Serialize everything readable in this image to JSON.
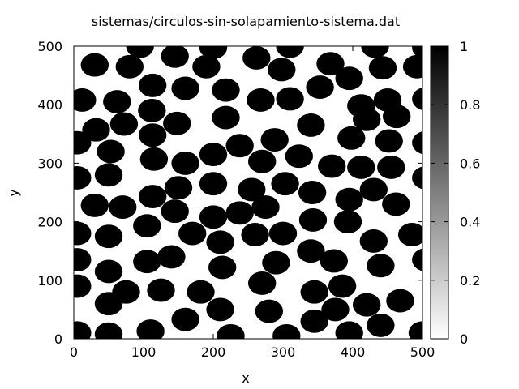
{
  "chart_data": {
    "type": "heatmap",
    "title": "sistemas/circulos-sin-solapamiento-sistema.dat",
    "xlabel": "x",
    "ylabel": "y",
    "xlim": [
      0,
      500
    ],
    "ylim": [
      0,
      500
    ],
    "x_ticks": [
      "0",
      "100",
      "200",
      "300",
      "400",
      "500"
    ],
    "y_ticks": [
      "0",
      "100",
      "200",
      "300",
      "400",
      "500"
    ],
    "colorbar": {
      "range": [
        0,
        1
      ],
      "ticks": [
        "0",
        "0.2",
        "0.4",
        "0.6",
        "0.8",
        "1"
      ],
      "colormap": "white-to-black"
    },
    "circle_radius": 20,
    "circle_value": 1,
    "circles": [
      [
        95,
        500
      ],
      [
        200,
        498
      ],
      [
        310,
        500
      ],
      [
        432,
        500
      ],
      [
        505,
        498
      ],
      [
        30,
        468
      ],
      [
        80,
        465
      ],
      [
        145,
        483
      ],
      [
        190,
        465
      ],
      [
        262,
        480
      ],
      [
        298,
        460
      ],
      [
        368,
        470
      ],
      [
        395,
        445
      ],
      [
        443,
        463
      ],
      [
        492,
        465
      ],
      [
        12,
        408
      ],
      [
        62,
        405
      ],
      [
        113,
        433
      ],
      [
        160,
        428
      ],
      [
        218,
        425
      ],
      [
        268,
        408
      ],
      [
        310,
        410
      ],
      [
        353,
        430
      ],
      [
        412,
        398
      ],
      [
        450,
        408
      ],
      [
        505,
        410
      ],
      [
        32,
        357
      ],
      [
        72,
        367
      ],
      [
        112,
        390
      ],
      [
        148,
        368
      ],
      [
        218,
        378
      ],
      [
        340,
        365
      ],
      [
        398,
        343
      ],
      [
        420,
        375
      ],
      [
        463,
        380
      ],
      [
        5,
        335
      ],
      [
        53,
        320
      ],
      [
        113,
        348
      ],
      [
        200,
        315
      ],
      [
        238,
        330
      ],
      [
        270,
        303
      ],
      [
        288,
        340
      ],
      [
        323,
        312
      ],
      [
        370,
        295
      ],
      [
        412,
        293
      ],
      [
        452,
        338
      ],
      [
        455,
        293
      ],
      [
        505,
        335
      ],
      [
        50,
        280
      ],
      [
        115,
        307
      ],
      [
        160,
        300
      ],
      [
        5,
        275
      ],
      [
        200,
        265
      ],
      [
        255,
        255
      ],
      [
        303,
        265
      ],
      [
        342,
        250
      ],
      [
        395,
        238
      ],
      [
        430,
        255
      ],
      [
        505,
        275
      ],
      [
        30,
        228
      ],
      [
        70,
        225
      ],
      [
        113,
        243
      ],
      [
        150,
        258
      ],
      [
        145,
        218
      ],
      [
        200,
        208
      ],
      [
        238,
        215
      ],
      [
        275,
        225
      ],
      [
        300,
        180
      ],
      [
        343,
        203
      ],
      [
        393,
        200
      ],
      [
        462,
        230
      ],
      [
        5,
        180
      ],
      [
        50,
        175
      ],
      [
        105,
        193
      ],
      [
        170,
        180
      ],
      [
        210,
        165
      ],
      [
        260,
        178
      ],
      [
        340,
        150
      ],
      [
        430,
        167
      ],
      [
        485,
        178
      ],
      [
        5,
        135
      ],
      [
        50,
        115
      ],
      [
        105,
        132
      ],
      [
        140,
        140
      ],
      [
        213,
        122
      ],
      [
        290,
        130
      ],
      [
        373,
        133
      ],
      [
        440,
        125
      ],
      [
        505,
        135
      ],
      [
        5,
        90
      ],
      [
        75,
        80
      ],
      [
        125,
        83
      ],
      [
        182,
        80
      ],
      [
        270,
        95
      ],
      [
        345,
        80
      ],
      [
        385,
        90
      ],
      [
        50,
        60
      ],
      [
        210,
        50
      ],
      [
        280,
        47
      ],
      [
        375,
        50
      ],
      [
        420,
        58
      ],
      [
        468,
        65
      ],
      [
        5,
        10
      ],
      [
        50,
        8
      ],
      [
        110,
        13
      ],
      [
        160,
        33
      ],
      [
        225,
        5
      ],
      [
        305,
        5
      ],
      [
        345,
        30
      ],
      [
        395,
        10
      ],
      [
        440,
        23
      ],
      [
        500,
        10
      ]
    ]
  }
}
